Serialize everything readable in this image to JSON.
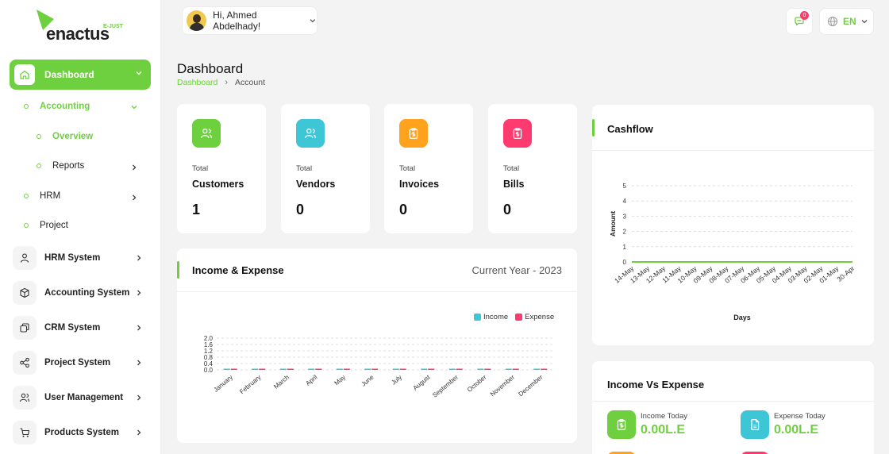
{
  "brand": {
    "name": "enactus",
    "sub": "E-JUST"
  },
  "sidebar": {
    "main": {
      "label": "Dashboard",
      "icon": "home-icon"
    },
    "sub_items": [
      {
        "label": "Accounting",
        "chevron": "down"
      },
      {
        "label": "Overview"
      },
      {
        "label": "Reports",
        "chevron": "right"
      },
      {
        "label": "HRM",
        "chevron": "right"
      },
      {
        "label": "Project"
      }
    ],
    "systems": [
      {
        "label": "HRM System",
        "icon": "user-icon"
      },
      {
        "label": "Accounting System",
        "icon": "box-icon"
      },
      {
        "label": "CRM System",
        "icon": "layers-icon"
      },
      {
        "label": "Project System",
        "icon": "share-icon"
      },
      {
        "label": "User Management",
        "icon": "users-icon"
      },
      {
        "label": "Products System",
        "icon": "cart-icon"
      }
    ]
  },
  "header": {
    "greeting": "Hi, Ahmed Abdelhady!",
    "notifications": "0",
    "language": "EN"
  },
  "page": {
    "title": "Dashboard",
    "breadcrumb": [
      "Dashboard",
      "Account"
    ]
  },
  "stats": [
    {
      "small": "Total",
      "label": "Customers",
      "value": "1",
      "color": "#6fd03f",
      "icon": "users-icon"
    },
    {
      "small": "Total",
      "label": "Vendors",
      "value": "0",
      "color": "#3ec6d6",
      "icon": "users-icon"
    },
    {
      "small": "Total",
      "label": "Invoices",
      "value": "0",
      "color": "#ffa21d",
      "icon": "clipboard-icon"
    },
    {
      "small": "Total",
      "label": "Bills",
      "value": "0",
      "color": "#ff3a6e",
      "icon": "clipboard-icon"
    }
  ],
  "income_expense": {
    "title": "Income & Expense",
    "period": "Current Year - 2023"
  },
  "cashflow": {
    "title": "Cashflow"
  },
  "income_vs_expense": {
    "title": "Income Vs Expense",
    "income_today_label": "Income Today",
    "income_today_value": "0.00L.E",
    "expense_today_label": "Expense Today",
    "expense_today_value": "0.00L.E"
  },
  "chart_data": [
    {
      "type": "bar",
      "categories": [
        "January",
        "February",
        "March",
        "April",
        "May",
        "June",
        "July",
        "August",
        "September",
        "October",
        "November",
        "December"
      ],
      "series": [
        {
          "name": "Income",
          "color": "#3ec6d6",
          "values": [
            0,
            0,
            0,
            0,
            0,
            0,
            0,
            0,
            0,
            0,
            0,
            0
          ]
        },
        {
          "name": "Expense",
          "color": "#ff3a6e",
          "values": [
            0,
            0,
            0,
            0,
            0,
            0,
            0,
            0,
            0,
            0,
            0,
            0
          ]
        }
      ],
      "yticks": [
        "0.0",
        "0.4",
        "0.8",
        "1.2",
        "1.6",
        "2.0"
      ],
      "ylim": [
        0,
        2
      ],
      "legend": "top-right",
      "grid": true
    },
    {
      "type": "line",
      "x": [
        "14-May",
        "13-May",
        "12-May",
        "11-May",
        "10-May",
        "09-May",
        "08-May",
        "07-May",
        "06-May",
        "05-May",
        "04-May",
        "03-May",
        "02-May",
        "01-May",
        "30-Apr"
      ],
      "series": [
        {
          "color": "#6fd03f",
          "values": [
            0,
            0,
            0,
            0,
            0,
            0,
            0,
            0,
            0,
            0,
            0,
            0,
            0,
            0,
            0
          ]
        }
      ],
      "yticks": [
        "0",
        "1",
        "2",
        "3",
        "4",
        "5"
      ],
      "ylim": [
        0,
        5
      ],
      "xlabel": "Days",
      "ylabel": "Amount",
      "grid": true
    }
  ]
}
